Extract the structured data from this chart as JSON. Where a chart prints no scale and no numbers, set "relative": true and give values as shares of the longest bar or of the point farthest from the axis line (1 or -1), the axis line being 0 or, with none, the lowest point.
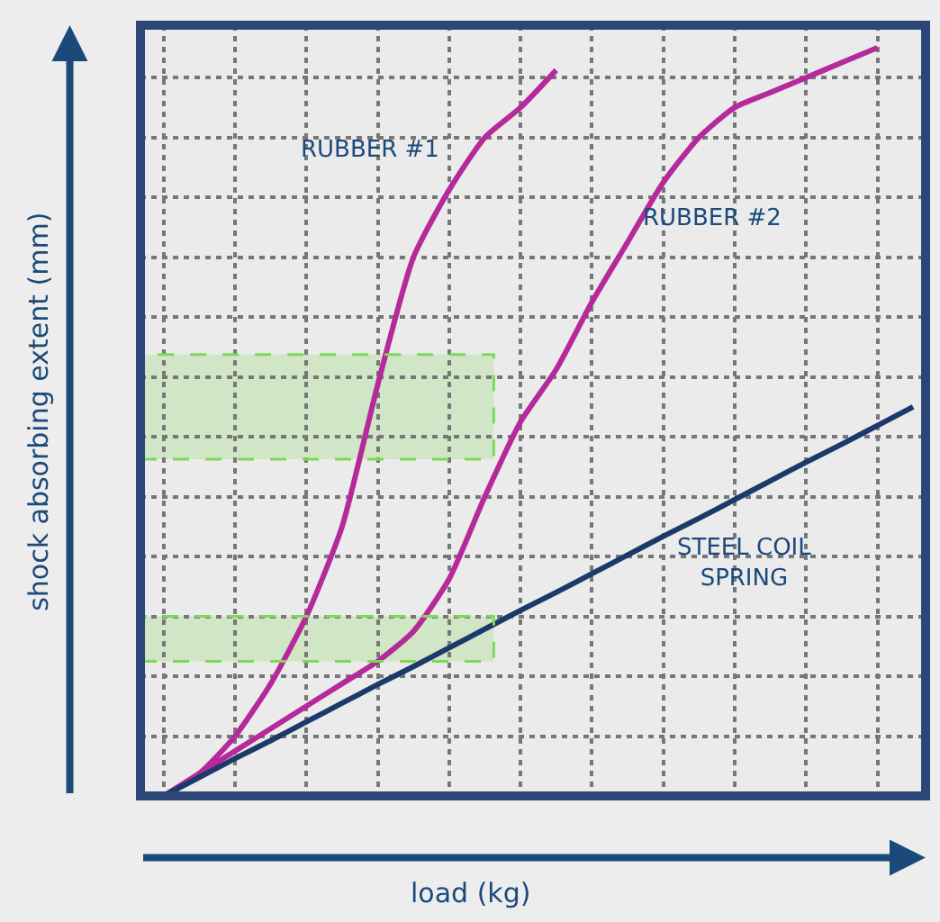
{
  "chart_data": {
    "type": "line",
    "relative": true,
    "xlabel": "load (kg)",
    "ylabel": "shock absorbing extent (mm)",
    "categories": [
      null,
      null,
      null,
      null,
      null,
      null,
      null,
      null,
      null,
      null,
      null,
      null,
      null,
      null,
      null,
      null,
      null,
      null,
      null,
      null,
      null,
      null
    ],
    "series": [
      {
        "name": "RUBBER #1",
        "color": "#b5299a",
        "values": [
          0,
          0.03,
          0.08,
          0.15,
          0.24,
          0.36,
          0.55,
          0.72,
          0.81,
          0.88,
          0.92,
          0.97,
          null,
          null,
          null,
          null,
          null,
          null,
          null,
          null,
          null,
          null
        ]
      },
      {
        "name": "RUBBER #2",
        "color": "#b5299a",
        "values": [
          0,
          0.03,
          0.06,
          0.09,
          0.12,
          0.15,
          0.18,
          0.22,
          0.29,
          0.4,
          0.5,
          0.57,
          0.66,
          0.74,
          0.82,
          0.88,
          0.92,
          0.94,
          0.96,
          0.98,
          1.0,
          null
        ]
      },
      {
        "name": "STEEL COIL SPRING",
        "color": "#1b3a6b",
        "values": [
          0,
          0.025,
          0.05,
          0.074,
          0.099,
          0.124,
          0.149,
          0.173,
          0.198,
          0.223,
          0.248,
          0.272,
          0.297,
          0.322,
          0.347,
          0.371,
          0.396,
          0.421,
          0.446,
          0.47,
          0.495,
          0.52
        ]
      }
    ],
    "bands": [
      {
        "axis": "y",
        "from": 0.18,
        "to": 0.24,
        "color": "#7ed957"
      },
      {
        "axis": "y",
        "from": 0.45,
        "to": 0.59,
        "color": "#7ed957"
      }
    ],
    "grid": true,
    "legend": false,
    "marker": "none",
    "line_style": "solid"
  }
}
